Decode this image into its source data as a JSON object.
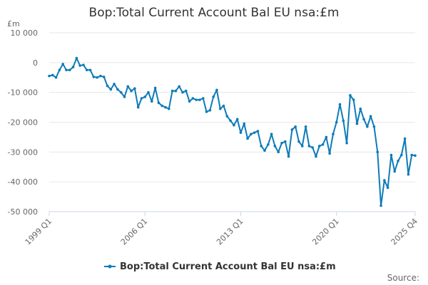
{
  "chart_data": {
    "type": "line",
    "title": "Bop:Total Current Account Bal EU nsa:£m",
    "ylabel_unit": "£m",
    "xlabel": "",
    "ylim": [
      -50000,
      10000
    ],
    "yticks": [
      10000,
      0,
      -10000,
      -20000,
      -30000,
      -40000,
      -50000
    ],
    "ytick_labels": [
      "10 000",
      "0",
      "-10 000",
      "-20 000",
      "-30 000",
      "-40 000",
      "-50 000"
    ],
    "xtick_labels": [
      "1999 Q1",
      "2006 Q1",
      "2013 Q1",
      "2020 Q1",
      "2025 Q4"
    ],
    "xtick_indices": [
      0,
      28,
      56,
      84,
      107
    ],
    "grid": true,
    "legend_position": "bottom",
    "color": "#0d7bb8",
    "series": [
      {
        "name": "Bop:Total Current Account Bal EU nsa:£m",
        "values": [
          -4500,
          -4200,
          -5000,
          -2500,
          -500,
          -2500,
          -2500,
          -1500,
          1500,
          -1000,
          -800,
          -2500,
          -2500,
          -4800,
          -5000,
          -4500,
          -4800,
          -7800,
          -9000,
          -7200,
          -9000,
          -10000,
          -11500,
          -8000,
          -9500,
          -8700,
          -15000,
          -12000,
          -11500,
          -10000,
          -13000,
          -8500,
          -13500,
          -14500,
          -15000,
          -15500,
          -9500,
          -9500,
          -8000,
          -10000,
          -9500,
          -13000,
          -12000,
          -12500,
          -12500,
          -12000,
          -16500,
          -16000,
          -11500,
          -9200,
          -15500,
          -14500,
          -18000,
          -19500,
          -21000,
          -19000,
          -23500,
          -20500,
          -25500,
          -24000,
          -23500,
          -23000,
          -28000,
          -29500,
          -27500,
          -24000,
          -28000,
          -30000,
          -27000,
          -26500,
          -31500,
          -22500,
          -21500,
          -26500,
          -28000,
          -21500,
          -28000,
          -28500,
          -31500,
          -28000,
          -27500,
          -25000,
          -30500,
          -24000,
          -20000,
          -14000,
          -19500,
          -27000,
          -11000,
          -12500,
          -20500,
          -15500,
          -19000,
          -21500,
          -18000,
          -21500,
          -30000,
          -48000,
          -39500,
          -42000,
          -31000,
          -36500,
          -33000,
          -31000,
          -25500,
          -37500,
          -31000,
          -31200
        ]
      }
    ]
  },
  "legend": {
    "label": "Bop:Total Current Account Bal EU nsa:£m"
  },
  "footer": {
    "source_label": "Source:"
  }
}
